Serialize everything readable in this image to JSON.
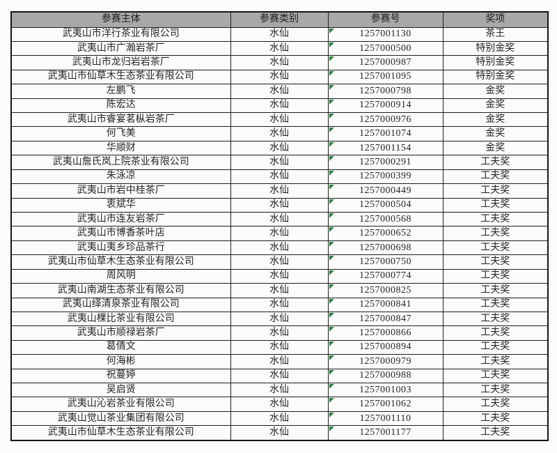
{
  "table": {
    "columns": [
      {
        "key": "entity",
        "label": "参赛主体"
      },
      {
        "key": "category",
        "label": "参赛类别"
      },
      {
        "key": "number",
        "label": "参赛号"
      },
      {
        "key": "award",
        "label": "奖项"
      }
    ],
    "rows": [
      {
        "entity": "武夷山市洋行茶业有限公司",
        "category": "水仙",
        "number": "1257001130",
        "award": "茶王"
      },
      {
        "entity": "武夷山市广瀚岩茶厂",
        "category": "水仙",
        "number": "1257000500",
        "award": "特别金奖"
      },
      {
        "entity": "武夷山市龙归岩岩茶厂",
        "category": "水仙",
        "number": "1257000987",
        "award": "特别金奖"
      },
      {
        "entity": "武夷山市仙草木生态茶业有限公司",
        "category": "水仙",
        "number": "1257001095",
        "award": "特别金奖"
      },
      {
        "entity": "左鹏飞",
        "category": "水仙",
        "number": "1257000798",
        "award": "金奖"
      },
      {
        "entity": "陈宏达",
        "category": "水仙",
        "number": "1257000914",
        "award": "金奖"
      },
      {
        "entity": "武夷山市睿宴茗枞岩茶厂",
        "category": "水仙",
        "number": "1257000976",
        "award": "金奖"
      },
      {
        "entity": "何飞美",
        "category": "水仙",
        "number": "1257001074",
        "award": "金奖"
      },
      {
        "entity": "华顺财",
        "category": "水仙",
        "number": "1257001154",
        "award": "金奖"
      },
      {
        "entity": "武夷山詹氏岚上院茶业有限公司",
        "category": "水仙",
        "number": "1257000291",
        "award": "工夫奖"
      },
      {
        "entity": "朱泳凉",
        "category": "水仙",
        "number": "1257000399",
        "award": "工夫奖"
      },
      {
        "entity": "武夷山市岩中桂茶厂",
        "category": "水仙",
        "number": "1257000449",
        "award": "工夫奖"
      },
      {
        "entity": "衷斌华",
        "category": "水仙",
        "number": "1257000504",
        "award": "工夫奖"
      },
      {
        "entity": "武夷山市连友岩茶厂",
        "category": "水仙",
        "number": "1257000568",
        "award": "工夫奖"
      },
      {
        "entity": "武夷山市博香茶叶店",
        "category": "水仙",
        "number": "1257000652",
        "award": "工夫奖"
      },
      {
        "entity": "武夷山夷乡珍品茶行",
        "category": "水仙",
        "number": "1257000698",
        "award": "工夫奖"
      },
      {
        "entity": "武夷山市仙草木生态茶业有限公司",
        "category": "水仙",
        "number": "1257000750",
        "award": "工夫奖"
      },
      {
        "entity": "周风明",
        "category": "水仙",
        "number": "1257000774",
        "award": "工夫奖"
      },
      {
        "entity": "武夷山南湖生态茶业有限公司",
        "category": "水仙",
        "number": "1257000825",
        "award": "工夫奖"
      },
      {
        "entity": "武夷山绎清泉茶业有限公司",
        "category": "水仙",
        "number": "1257000841",
        "award": "工夫奖"
      },
      {
        "entity": "武夷山棵比茶业有限公司",
        "category": "水仙",
        "number": "1257000847",
        "award": "工夫奖"
      },
      {
        "entity": "武夷山市顺禄岩茶厂",
        "category": "水仙",
        "number": "1257000866",
        "award": "工夫奖"
      },
      {
        "entity": "葛倩文",
        "category": "水仙",
        "number": "1257000894",
        "award": "工夫奖"
      },
      {
        "entity": "何海彬",
        "category": "水仙",
        "number": "1257000979",
        "award": "工夫奖"
      },
      {
        "entity": "祝蔓婷",
        "category": "水仙",
        "number": "1257000988",
        "award": "工夫奖"
      },
      {
        "entity": "吴启贤",
        "category": "水仙",
        "number": "1257001003",
        "award": "工夫奖"
      },
      {
        "entity": "武夷山沁岩茶业有限公司",
        "category": "水仙",
        "number": "1257001062",
        "award": "工夫奖"
      },
      {
        "entity": "武夷山觉山茶业集团有限公司",
        "category": "水仙",
        "number": "1257001110",
        "award": "工夫奖"
      },
      {
        "entity": "武夷山市仙草木生态茶业有限公司",
        "category": "水仙",
        "number": "1257001177",
        "award": "工夫奖"
      }
    ]
  },
  "icons": {
    "corner_marker": "excel-corner-triangle"
  },
  "colors": {
    "header_bg": "#a8a8a8",
    "border": "#1d1d1d",
    "text": "#242424",
    "triangle_green": "#2e7d41",
    "cell_bg": "#fbfbfa",
    "page_bg": "#fcfbf9"
  }
}
